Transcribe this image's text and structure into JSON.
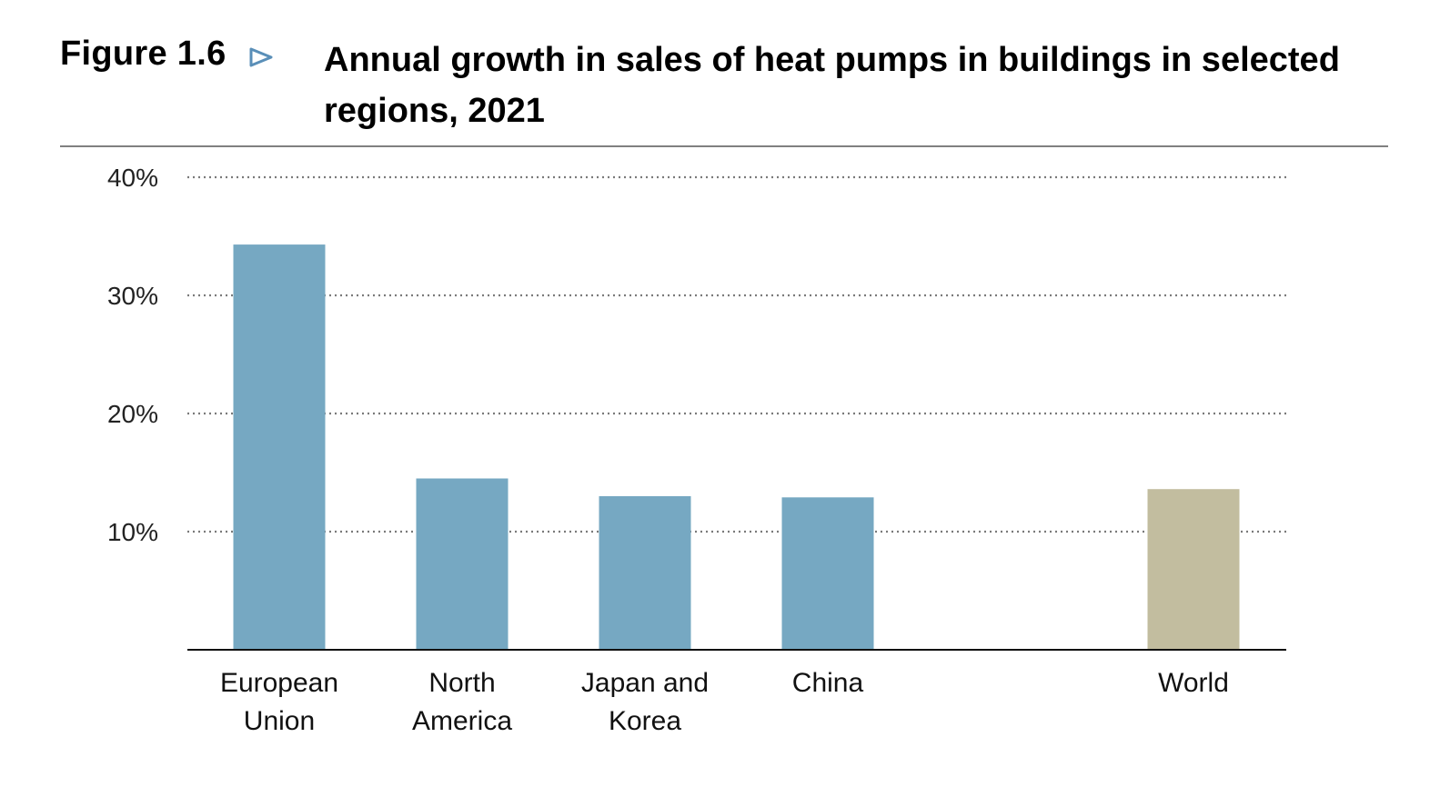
{
  "figure": {
    "label": "Figure 1.6",
    "title": "Annual growth in sales of heat pumps in buildings in selected regions, 2021"
  },
  "chart_data": {
    "type": "bar",
    "title": "Annual growth in sales of heat pumps in buildings in selected regions, 2021",
    "xlabel": "",
    "ylabel": "",
    "ylim": [
      0,
      40
    ],
    "yticks": [
      10,
      20,
      30,
      40
    ],
    "ytick_labels": [
      "10%",
      "20%",
      "30%",
      "40%"
    ],
    "grid": true,
    "categories": [
      [
        "European",
        "Union"
      ],
      [
        "North",
        "America"
      ],
      [
        "Japan and",
        "Korea"
      ],
      [
        "China"
      ],
      [
        "World"
      ]
    ],
    "values": [
      34.3,
      14.5,
      13.0,
      12.9,
      13.6
    ],
    "colors": [
      "#76a8c2",
      "#76a8c2",
      "#76a8c2",
      "#76a8c2",
      "#c2bd9f"
    ]
  },
  "colors": {
    "region_bar": "#76a8c2",
    "world_bar": "#c2bd9f",
    "arrow": "#5a8fb8",
    "gridline": "#7a7a7a"
  }
}
